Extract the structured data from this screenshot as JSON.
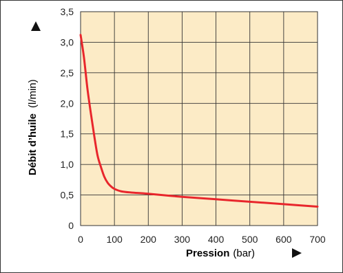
{
  "chart_data": {
    "type": "line",
    "title": "",
    "xlabel": {
      "main": "Pression",
      "unit": "(bar)"
    },
    "ylabel": {
      "main": "Débit d’huile",
      "unit": "(l/min)"
    },
    "xlim": [
      0,
      700
    ],
    "ylim": [
      0,
      3.5
    ],
    "x_ticks": [
      0,
      100,
      200,
      300,
      400,
      500,
      600,
      700
    ],
    "y_ticks": [
      0,
      0.5,
      1.0,
      1.5,
      2.0,
      2.5,
      3.0,
      3.5
    ],
    "x_tick_labels": [
      "0",
      "100",
      "200",
      "300",
      "400",
      "500",
      "600",
      "700"
    ],
    "y_tick_labels": [
      "0",
      "0,5",
      "1,0",
      "1,5",
      "2,0",
      "2,5",
      "3,0",
      "3,5"
    ],
    "grid": true,
    "colors": {
      "background": "#fcebc6",
      "line": "#e8262c",
      "grid": "#333333"
    },
    "series": [
      {
        "x": [
          0,
          10,
          20,
          30,
          40,
          50,
          60,
          70,
          80,
          90,
          100,
          120,
          150,
          200,
          300,
          400,
          500,
          600,
          700
        ],
        "y": [
          3.12,
          2.75,
          2.25,
          1.85,
          1.48,
          1.15,
          0.96,
          0.8,
          0.7,
          0.64,
          0.6,
          0.56,
          0.54,
          0.52,
          0.47,
          0.43,
          0.39,
          0.35,
          0.31
        ]
      }
    ]
  }
}
